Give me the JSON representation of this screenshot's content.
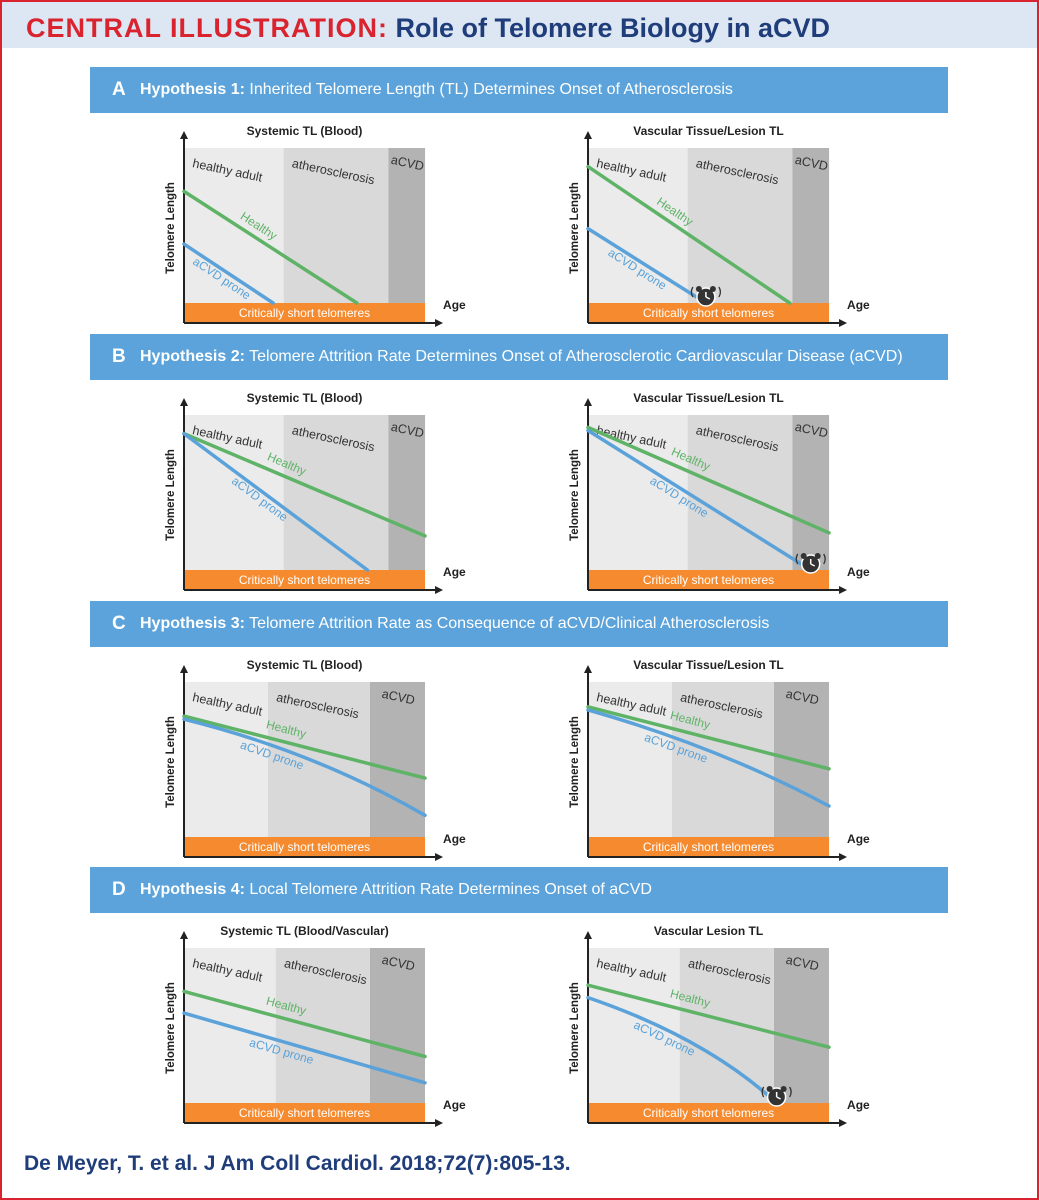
{
  "header": {
    "label": "CENTRAL ILLUSTRATION:",
    "title": "Role of Telomere Biology in aCVD"
  },
  "common": {
    "y_axis_label": "Telomere Length",
    "x_axis_label": "Age",
    "critical_band_label": "Critically short telomeres",
    "stage_labels": [
      "healthy adult",
      "atherosclerosis",
      "aCVD"
    ],
    "series_healthy": "Healthy",
    "series_prone": "aCVD prone"
  },
  "colors": {
    "brand_red": "#d9232e",
    "navy": "#1f3d7a",
    "panel_blue": "#5ba3da",
    "header_band": "#dde7f3",
    "orange": "#f58a2e",
    "healthy_green": "#5fb367",
    "prone_blue": "#5aa2d9",
    "stage1_bg": "#ebebeb",
    "stage2_bg": "#d9d9d9",
    "stage3_bg": "#b3b3b3"
  },
  "panels": [
    {
      "letter": "A",
      "hypothesis_label": "Hypothesis 1:",
      "hypothesis_text": "Inherited Telomere Length (TL) Determines Onset of Atherosclerosis",
      "charts": [
        {
          "title": "Systemic TL (Blood)",
          "stages": [
            0,
            0.38,
            0.78,
            0.92
          ],
          "healthy": {
            "points": [
              [
                0,
                0.72
              ],
              [
                0.66,
                0
              ]
            ],
            "curved": false
          },
          "prone": {
            "points": [
              [
                0,
                0.38
              ],
              [
                0.34,
                0
              ]
            ],
            "curved": false
          },
          "alarm": null
        },
        {
          "title": "Vascular Tissue/Lesion TL",
          "stages": [
            0,
            0.38,
            0.78,
            0.92
          ],
          "healthy": {
            "points": [
              [
                0,
                0.88
              ],
              [
                0.77,
                0
              ]
            ],
            "curved": false
          },
          "prone": {
            "points": [
              [
                0,
                0.48
              ],
              [
                0.45,
                0
              ]
            ],
            "curved": false
          },
          "alarm": [
            0.45,
            0
          ]
        }
      ]
    },
    {
      "letter": "B",
      "hypothesis_label": "Hypothesis 2:",
      "hypothesis_text": "Telomere Attrition Rate Determines Onset of Atherosclerotic Cardiovascular Disease (aCVD)",
      "charts": [
        {
          "title": "Systemic TL (Blood)",
          "stages": [
            0,
            0.38,
            0.78,
            0.92
          ],
          "healthy": {
            "points": [
              [
                0,
                0.88
              ],
              [
                0.92,
                0.22
              ]
            ],
            "curved": false
          },
          "prone": {
            "points": [
              [
                0,
                0.88
              ],
              [
                0.7,
                0
              ]
            ],
            "curved": false
          },
          "alarm": null
        },
        {
          "title": "Vascular Tissue/Lesion TL",
          "stages": [
            0,
            0.38,
            0.78,
            0.92
          ],
          "healthy": {
            "points": [
              [
                0,
                0.92
              ],
              [
                0.92,
                0.24
              ]
            ],
            "curved": false
          },
          "prone": {
            "points": [
              [
                0,
                0.9
              ],
              [
                0.85,
                0
              ]
            ],
            "curved": false
          },
          "alarm": [
            0.85,
            0
          ]
        }
      ]
    },
    {
      "letter": "C",
      "hypothesis_label": "Hypothesis 3:",
      "hypothesis_text": "Telomere Attrition Rate as Consequence of aCVD/Clinical Atherosclerosis",
      "charts": [
        {
          "title": "Systemic TL (Blood)",
          "stages": [
            0,
            0.32,
            0.71,
            0.92
          ],
          "healthy": {
            "points": [
              [
                0,
                0.78
              ],
              [
                0.92,
                0.38
              ]
            ],
            "curved": false
          },
          "prone": {
            "points": [
              [
                0,
                0.76
              ],
              [
                0.5,
                0.55
              ],
              [
                0.92,
                0.14
              ]
            ],
            "curved": true
          },
          "alarm": null
        },
        {
          "title": "Vascular Tissue/Lesion TL",
          "stages": [
            0,
            0.32,
            0.71,
            0.92
          ],
          "healthy": {
            "points": [
              [
                0,
                0.84
              ],
              [
                0.92,
                0.44
              ]
            ],
            "curved": false
          },
          "prone": {
            "points": [
              [
                0,
                0.82
              ],
              [
                0.5,
                0.58
              ],
              [
                0.92,
                0.2
              ]
            ],
            "curved": true
          },
          "alarm": null
        }
      ]
    },
    {
      "letter": "D",
      "hypothesis_label": "Hypothesis 4:",
      "hypothesis_text": "Local Telomere Attrition Rate Determines Onset of aCVD",
      "charts": [
        {
          "title": "Systemic TL (Blood/Vascular)",
          "stages": [
            0,
            0.35,
            0.71,
            0.92
          ],
          "healthy": {
            "points": [
              [
                0,
                0.72
              ],
              [
                0.92,
                0.3
              ]
            ],
            "curved": false
          },
          "prone": {
            "points": [
              [
                0,
                0.58
              ],
              [
                0.92,
                0.13
              ]
            ],
            "curved": false
          },
          "alarm": null
        },
        {
          "title": "Vascular Lesion TL",
          "stages": [
            0,
            0.35,
            0.71,
            0.92
          ],
          "healthy": {
            "points": [
              [
                0,
                0.76
              ],
              [
                0.92,
                0.36
              ]
            ],
            "curved": false
          },
          "prone": {
            "points": [
              [
                0,
                0.68
              ],
              [
                0.45,
                0.42
              ],
              [
                0.72,
                0
              ]
            ],
            "curved": true
          },
          "alarm": [
            0.72,
            0
          ]
        }
      ]
    }
  ],
  "citation": "De Meyer, T. et al. J Am Coll Cardiol. 2018;72(7):805-13."
}
